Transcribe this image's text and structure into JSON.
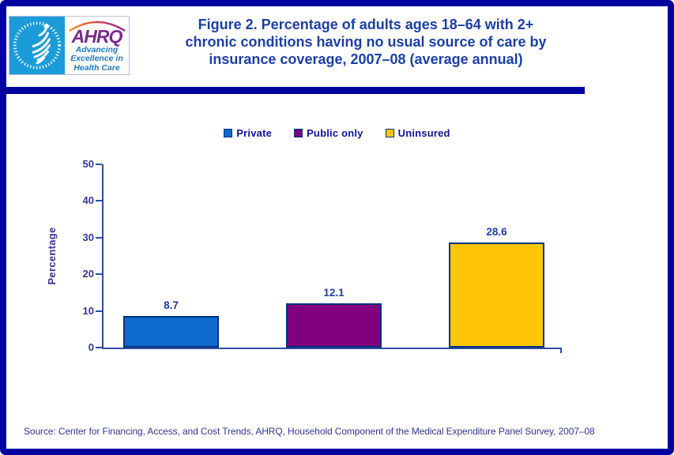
{
  "header": {
    "logo": {
      "acronym": "AHRQ",
      "tagline_lines": [
        "Advancing",
        "Excellence in",
        "Health Care"
      ]
    },
    "title_lines": [
      "Figure 2. Percentage of adults ages 18–64 with 2+",
      "chronic conditions having no usual source of care by",
      "insurance coverage, 2007–08 (average annual)"
    ]
  },
  "icons": {
    "hhs_eagle": "hhs-eagle-icon",
    "rainbow_arc": "rainbow-arc-icon"
  },
  "chart_data": {
    "type": "bar",
    "categories": [
      "Private",
      "Public only",
      "Uninsured"
    ],
    "values": [
      8.7,
      12.1,
      28.6
    ],
    "data_labels": [
      "8.7",
      "12.1",
      "28.6"
    ],
    "series_colors": [
      "#0d6bce",
      "#800080",
      "#ffc608"
    ],
    "title": "Figure 2. Percentage of adults ages 18–64 with 2+ chronic conditions having no usual source of care by insurance coverage, 2007–08 (average annual)",
    "xlabel": "",
    "ylabel": "Percentage",
    "ylim": [
      0,
      50
    ],
    "yticks": [
      0,
      10,
      20,
      30,
      40,
      50
    ],
    "grid": false,
    "legend_position": "top"
  },
  "colors": {
    "page_border": "#0000a0",
    "divider": "#0000a0",
    "title_text": "#1b3fa5",
    "chart_text": "#333399",
    "legend_text": "#10109b",
    "axis": "#2f4da0",
    "bar_border": "#00317e",
    "logo_panel_blue": "#1b9bd8",
    "logo_purple": "#7b2a8d",
    "logo_tagline_blue": "#1d78c0"
  },
  "footer": {
    "source": "Source: Center for Financing, Access, and Cost Trends, AHRQ, Household Component of the Medical Expenditure Panel Survey, 2007–08"
  }
}
